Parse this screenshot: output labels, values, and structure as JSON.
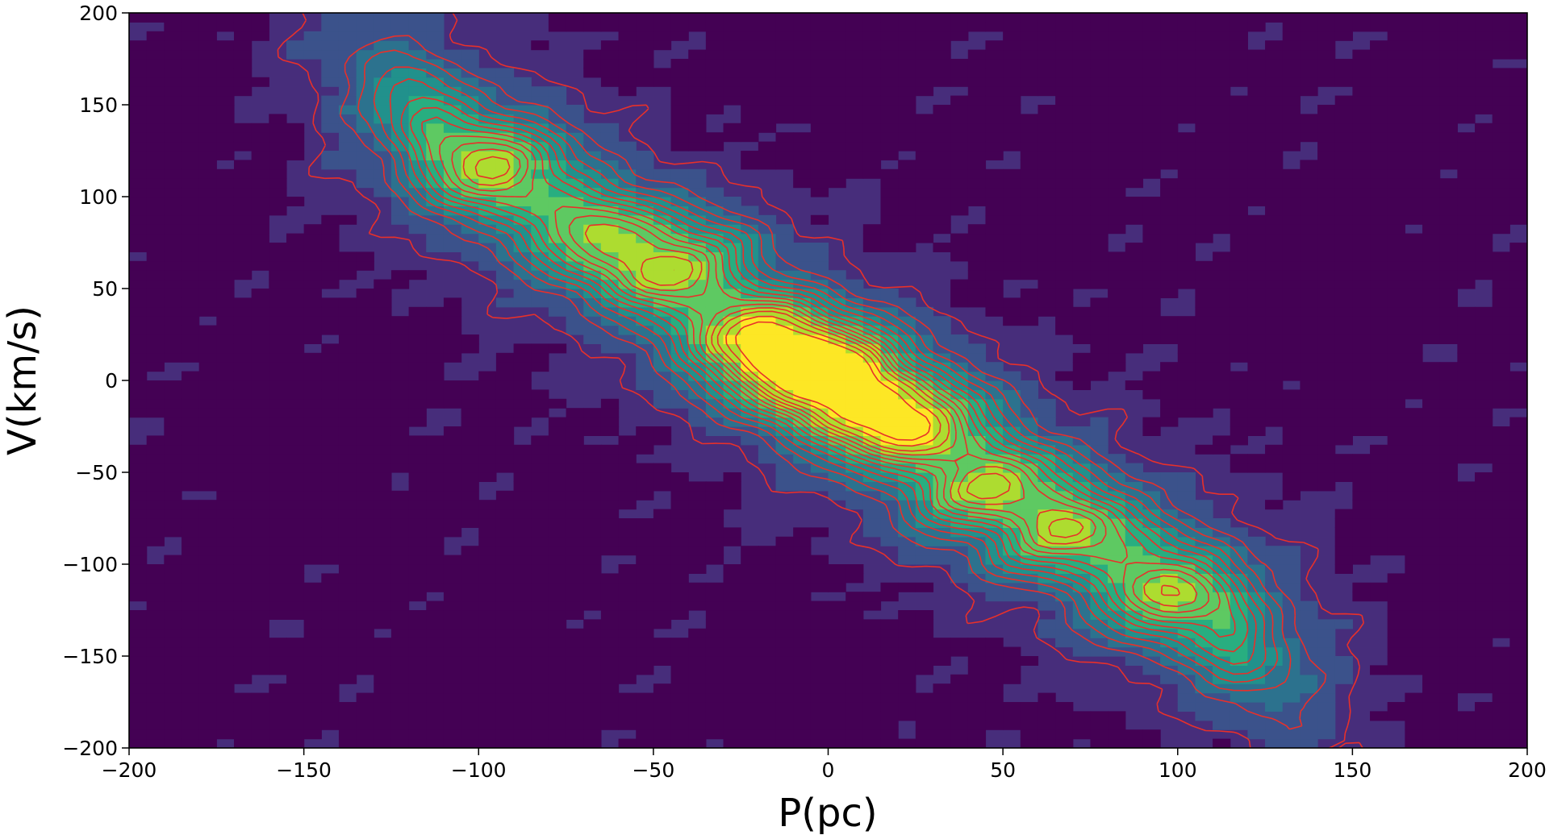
{
  "chart_data": {
    "type": "heatmap",
    "subtype": "filled-contour-with-line-contour-overlay",
    "title": "",
    "xlabel": "P(pc)",
    "ylabel": "V(km/s)",
    "xlim": [
      -200,
      200
    ],
    "ylim": [
      -200,
      200
    ],
    "x_ticks": [
      -200,
      -150,
      -100,
      -50,
      0,
      50,
      100,
      150,
      200
    ],
    "x_tick_labels": [
      "−200",
      "−150",
      "−100",
      "−50",
      "0",
      "50",
      "100",
      "150",
      "200"
    ],
    "y_ticks": [
      -200,
      -150,
      -100,
      -50,
      0,
      50,
      100,
      150,
      200
    ],
    "y_tick_labels": [
      "−200",
      "−150",
      "−100",
      "−50",
      "0",
      "50",
      "100",
      "150",
      "200"
    ],
    "grid": false,
    "legend": "none",
    "colormap": "viridis",
    "background_color": "#472d7b",
    "filled_levels": [
      {
        "level": 0,
        "color": "#440154"
      },
      {
        "level": 1,
        "color": "#472d7b"
      },
      {
        "level": 2,
        "color": "#3b528b"
      },
      {
        "level": 3,
        "color": "#2c728e"
      },
      {
        "level": 4,
        "color": "#21918c"
      },
      {
        "level": 5,
        "color": "#28ae80"
      },
      {
        "level": 6,
        "color": "#5ec962"
      },
      {
        "level": 7,
        "color": "#addc30"
      },
      {
        "level": 8,
        "color": "#fde725"
      }
    ],
    "ridge": {
      "description": "linear anti-correlated band",
      "slope_kms_per_pc": -1.17,
      "intercept_kms": 2,
      "x_range": [
        -130,
        130
      ]
    },
    "peaks": [
      {
        "x": -95,
        "y": 118,
        "amp": 0.45
      },
      {
        "x": -60,
        "y": 80,
        "amp": 0.4
      },
      {
        "x": -40,
        "y": 65,
        "amp": 0.55
      },
      {
        "x": -22,
        "y": 25,
        "amp": 0.7
      },
      {
        "x": -10,
        "y": 12,
        "amp": 0.8
      },
      {
        "x": 0,
        "y": 2,
        "amp": 1.0
      },
      {
        "x": 12,
        "y": -15,
        "amp": 0.8
      },
      {
        "x": 25,
        "y": -28,
        "amp": 0.65
      },
      {
        "x": 42,
        "y": -63,
        "amp": 0.55
      },
      {
        "x": 65,
        "y": -85,
        "amp": 0.45
      },
      {
        "x": 95,
        "y": -118,
        "amp": 0.4
      }
    ],
    "contour_lines": {
      "color": "#e8302a",
      "levels": [
        0.06,
        0.14,
        0.2,
        0.26,
        0.32,
        0.38,
        0.44,
        0.5,
        0.56,
        0.62,
        0.68,
        0.74,
        0.82,
        0.9
      ]
    }
  }
}
